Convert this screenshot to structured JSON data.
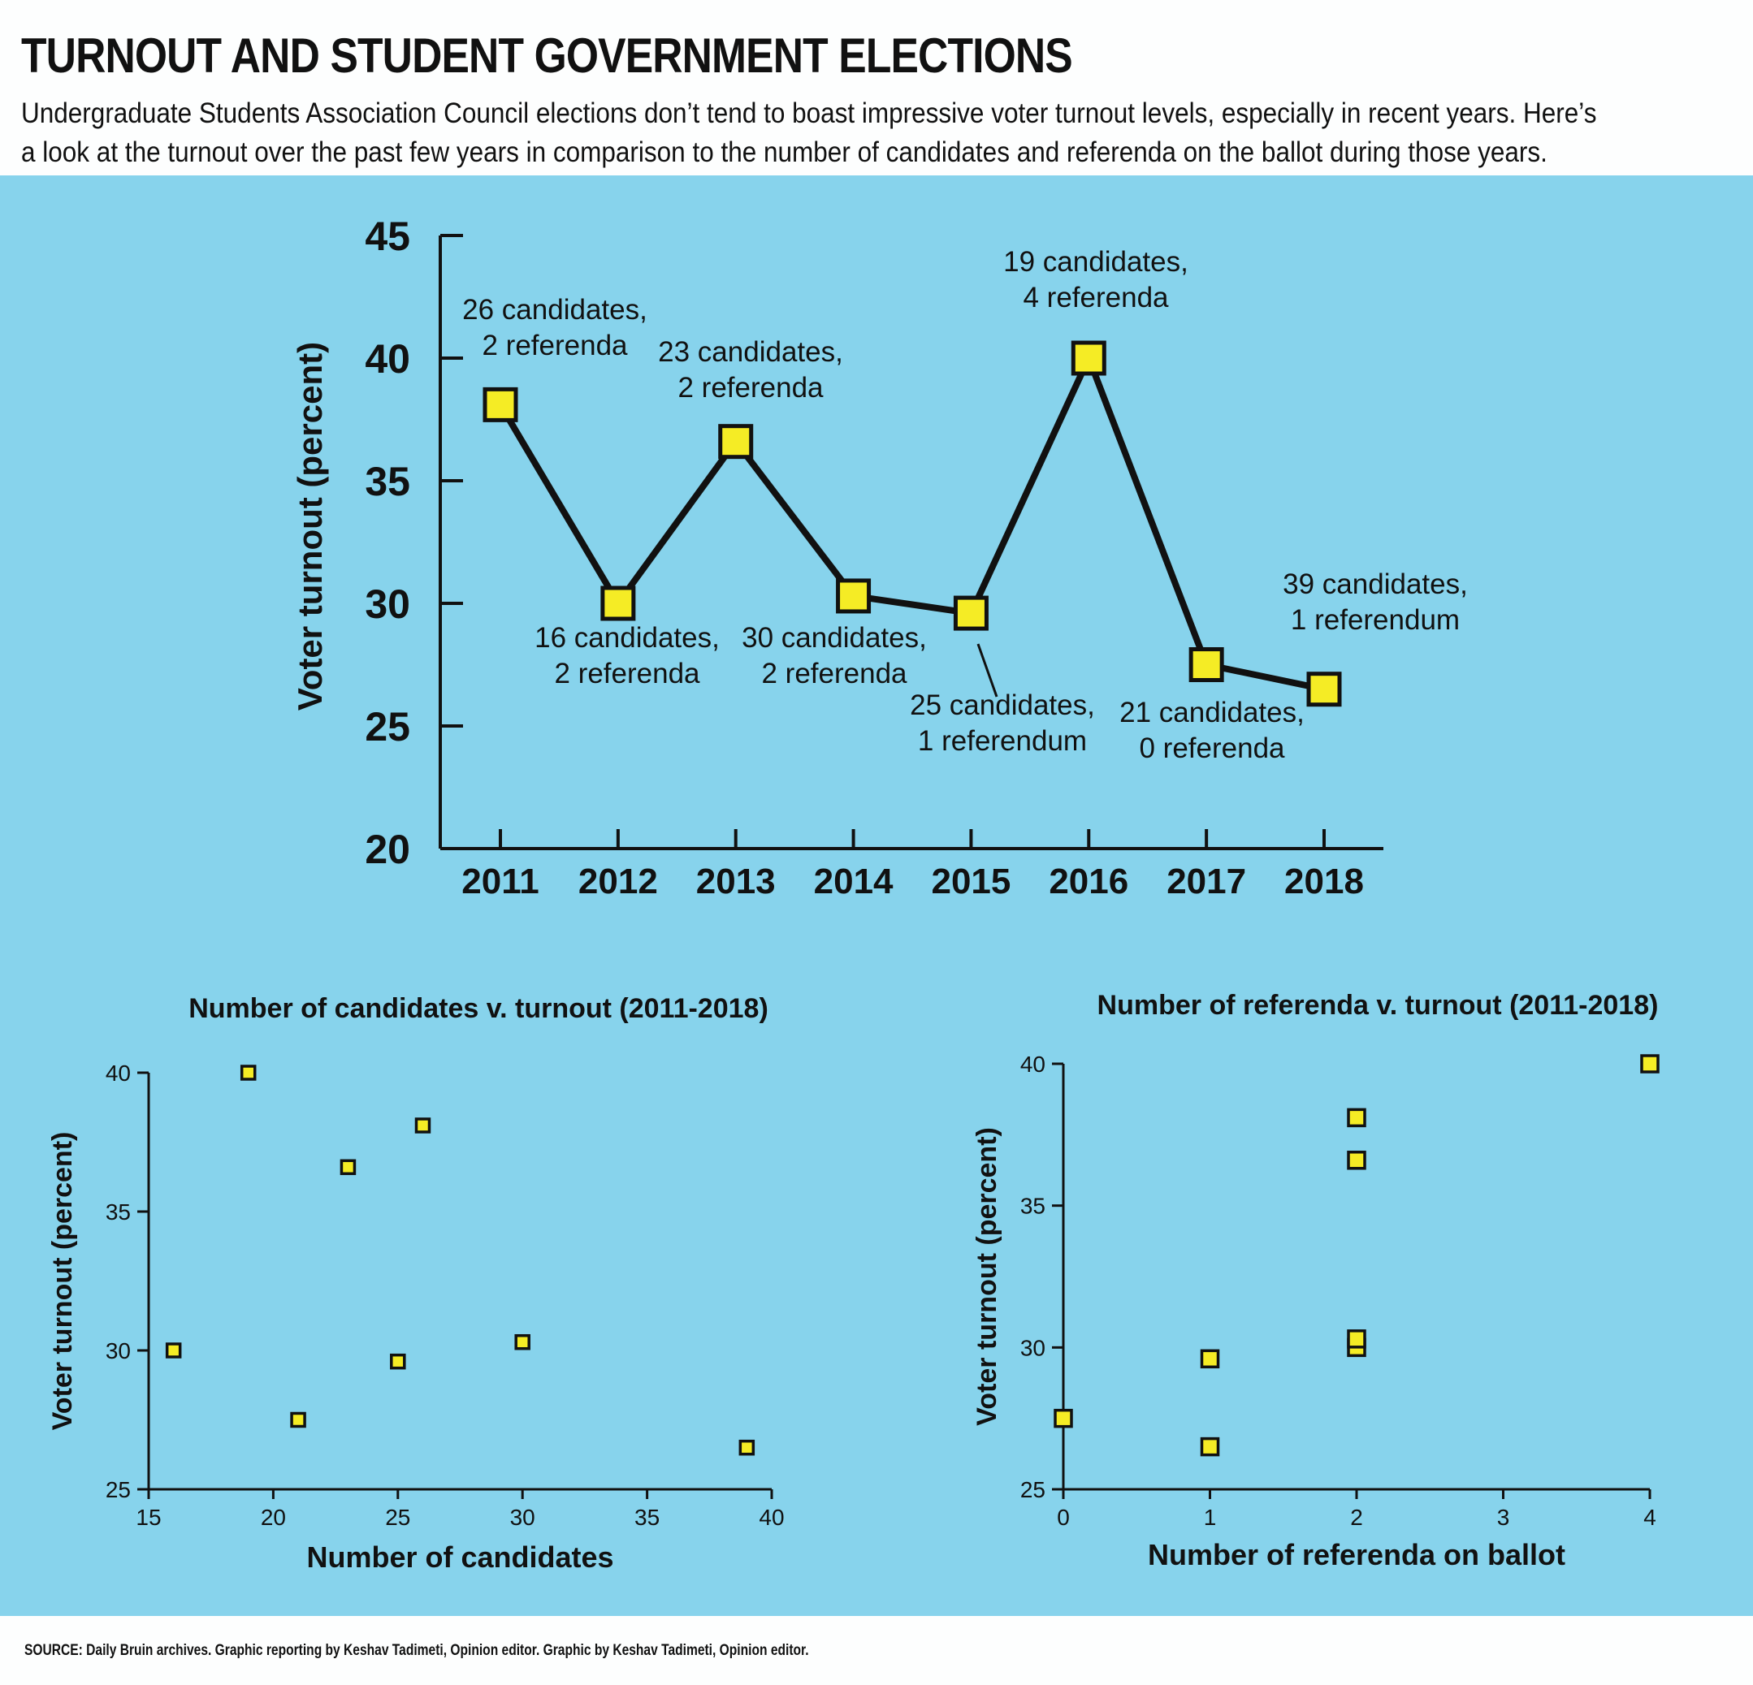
{
  "header": {
    "title": "TURNOUT AND STUDENT GOVERNMENT ELECTIONS",
    "subtitle_line1": "Undergraduate Students Association Council elections don’t tend to boast impressive voter turnout levels, especially in recent years. Here’s",
    "subtitle_line2": "a look at the turnout over the past few years in comparison to the number of candidates and referenda on the ballot during those years."
  },
  "colors": {
    "panel": "#87d3ec",
    "marker": "#f5ec25",
    "line": "#111111"
  },
  "chart_data": [
    {
      "type": "line",
      "title": "",
      "xlabel": "",
      "ylabel": "Voter turnout (percent)",
      "ylim": [
        20,
        45
      ],
      "yticks": [
        20,
        25,
        30,
        35,
        40,
        45
      ],
      "categories": [
        "2011",
        "2012",
        "2013",
        "2014",
        "2015",
        "2016",
        "2017",
        "2018"
      ],
      "values": [
        38.1,
        30,
        36.6,
        30.3,
        29.6,
        40,
        27.5,
        26.5
      ],
      "annotations": [
        [
          "26 candidates,",
          "2 referenda"
        ],
        [
          "16 candidates,",
          "2 referenda"
        ],
        [
          "23 candidates,",
          "2 referenda"
        ],
        [
          "30 candidates,",
          "2 referenda"
        ],
        [
          "25 candidates,",
          "1 referendum"
        ],
        [
          "19 candidates,",
          "4 referenda"
        ],
        [
          "21 candidates,",
          "0 referenda"
        ],
        [
          "39 candidates,",
          "1 referendum"
        ]
      ]
    },
    {
      "type": "scatter",
      "title": "Number of candidates v. turnout (2011-2018)",
      "xlabel": "Number of candidates",
      "ylabel": "Voter turnout (percent)",
      "xlim": [
        15,
        40
      ],
      "ylim": [
        25,
        40
      ],
      "xticks": [
        15,
        20,
        25,
        30,
        35,
        40
      ],
      "yticks": [
        25,
        30,
        35,
        40
      ],
      "x": [
        26,
        16,
        23,
        30,
        25,
        19,
        21,
        39
      ],
      "y": [
        38.1,
        30,
        36.6,
        30.3,
        29.6,
        40,
        27.5,
        26.5
      ]
    },
    {
      "type": "scatter",
      "title": "Number of referenda v. turnout (2011-2018)",
      "xlabel": "Number of referenda on ballot",
      "ylabel": "Voter turnout (percent)",
      "xlim": [
        0,
        4
      ],
      "ylim": [
        25,
        40
      ],
      "xticks": [
        0,
        1,
        2,
        3,
        4
      ],
      "yticks": [
        25,
        30,
        35,
        40
      ],
      "x": [
        2,
        2,
        2,
        2,
        1,
        4,
        0,
        1
      ],
      "y": [
        38.1,
        30,
        36.6,
        30.3,
        29.6,
        40,
        27.5,
        26.5
      ]
    }
  ],
  "footer": {
    "source": "SOURCE: Daily Bruin archives. Graphic reporting by Keshav Tadimeti, Opinion editor. Graphic by Keshav Tadimeti, Opinion editor."
  }
}
